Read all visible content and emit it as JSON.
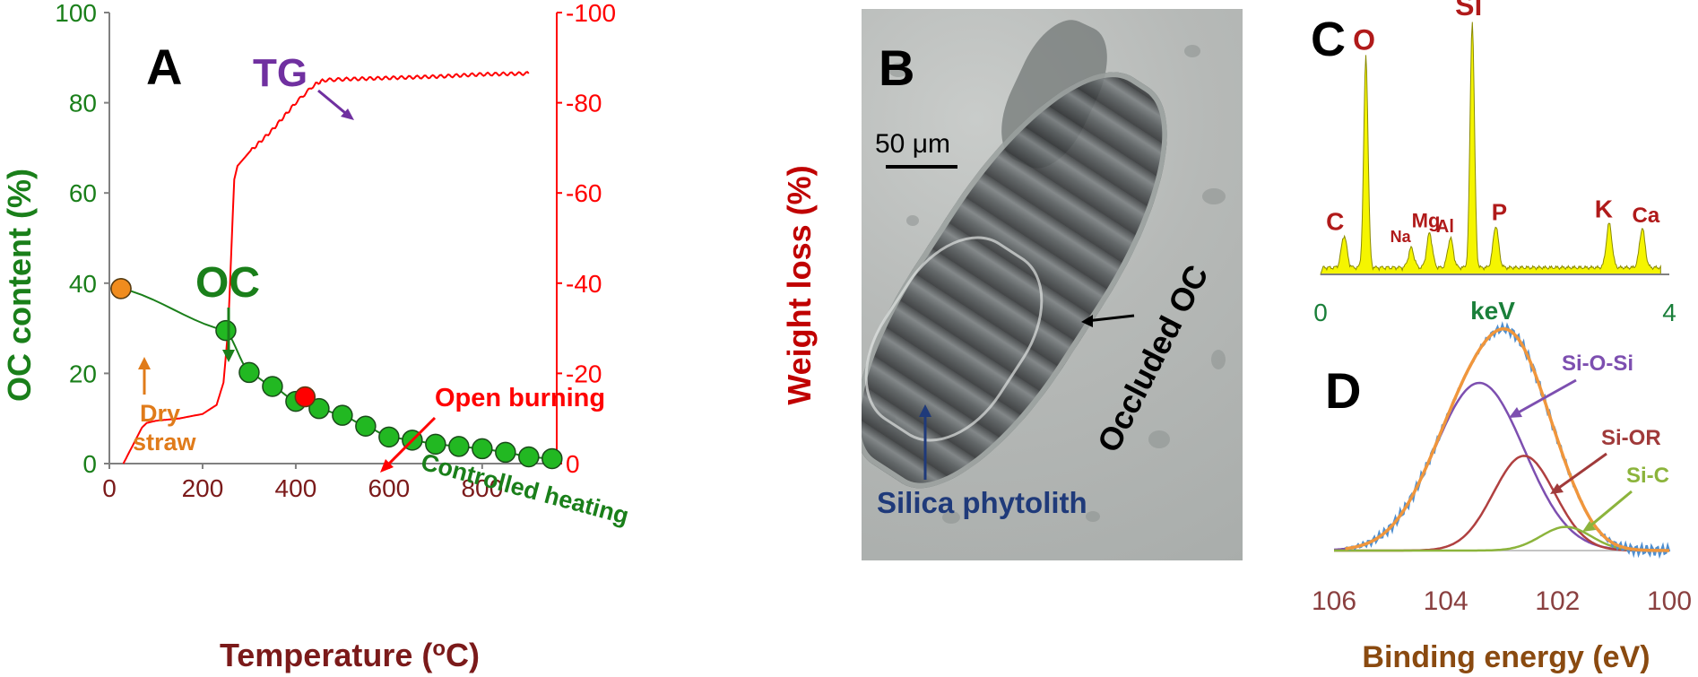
{
  "chart_data": [
    {
      "type": "line",
      "panel_label": "A",
      "xlabel": "Temperature (oC)",
      "ylabel_left": "OC content (%)",
      "ylabel_right": "Weight loss (%)",
      "xlim": [
        0,
        960
      ],
      "ylim_left": [
        0,
        100
      ],
      "ylim_right": [
        0,
        -100
      ],
      "x_ticks": [
        "0",
        "200",
        "400",
        "600",
        "800"
      ],
      "y_left_ticks": [
        "0",
        "20",
        "40",
        "60",
        "80",
        "100"
      ],
      "y_right_ticks": [
        "0",
        "-20",
        "-40",
        "-60",
        "-80",
        "-100"
      ],
      "series": [
        {
          "name": "OC",
          "axis": "left",
          "color": "#1a7f1a",
          "x": [
            25,
            250,
            300,
            350,
            400,
            450,
            500,
            550,
            600,
            650,
            700,
            750,
            800,
            850,
            900,
            950
          ],
          "y": [
            38.8,
            29.5,
            20.2,
            17.1,
            13.8,
            12.2,
            10.7,
            8.3,
            5.9,
            5.2,
            4.3,
            3.8,
            3.3,
            2.5,
            1.5,
            1.1
          ]
        },
        {
          "name": "TG",
          "axis": "right",
          "color": "#ff0000",
          "x": [
            30,
            50,
            70,
            80,
            100,
            150,
            200,
            230,
            245,
            255,
            262,
            268,
            275,
            300,
            350,
            400,
            440,
            460,
            500,
            600,
            700,
            800,
            900
          ],
          "y": [
            0,
            -4,
            -8,
            -9,
            -9.5,
            -10,
            -11,
            -13,
            -18,
            -30,
            -48,
            -63,
            -66,
            -69,
            -74,
            -80,
            -84,
            -85,
            -85.2,
            -85.5,
            -85.8,
            -86.3,
            -86.5
          ]
        }
      ],
      "highlight_points": [
        {
          "label": "Dry straw",
          "x": 25,
          "y": 38.8,
          "color": "#f08c1e"
        },
        {
          "label": "Open burning",
          "x": 420,
          "y": 14.8,
          "color": "#ff0000"
        }
      ],
      "annotations": {
        "tg": "TG",
        "oc": "OC",
        "dry_straw_line1": "Dry",
        "dry_straw_line2": "straw",
        "open_burning": "Open burning",
        "controlled_heating": "Controlled heating"
      }
    },
    {
      "type": "bar",
      "panel_label": "C",
      "xlabel": "keV",
      "x_ticks": [
        "0",
        "4"
      ],
      "xlim": [
        0,
        4
      ],
      "color": "#f5f500",
      "peaks": [
        {
          "element": "C",
          "kev": 0.27,
          "height": 0.13
        },
        {
          "element": "O",
          "kev": 0.52,
          "height": 0.86
        },
        {
          "element": "Na",
          "kev": 1.04,
          "height": 0.08
        },
        {
          "element": "Mg",
          "kev": 1.25,
          "height": 0.14
        },
        {
          "element": "Al",
          "kev": 1.49,
          "height": 0.12
        },
        {
          "element": "Si",
          "kev": 1.74,
          "height": 1.0
        },
        {
          "element": "P",
          "kev": 2.01,
          "height": 0.17
        },
        {
          "element": "K",
          "kev": 3.31,
          "height": 0.18
        },
        {
          "element": "Ca",
          "kev": 3.69,
          "height": 0.16
        }
      ]
    },
    {
      "type": "line",
      "panel_label": "D",
      "xlabel": "Binding energy (eV)",
      "xlim": [
        106,
        100
      ],
      "x_ticks": [
        "106",
        "104",
        "102",
        "100"
      ],
      "series": [
        {
          "name": "Si-O-Si",
          "color": "#7d4fb0",
          "center": 103.4,
          "amplitude": 0.85,
          "sigma": 0.8
        },
        {
          "name": "Si-OR",
          "color": "#b04040",
          "center": 102.6,
          "amplitude": 0.48,
          "sigma": 0.55
        },
        {
          "name": "Si-C",
          "color": "#8cb43c",
          "center": 101.85,
          "amplitude": 0.12,
          "sigma": 0.45
        }
      ],
      "envelope_color": "#f0963c",
      "measured_color": "#4f8fd0"
    }
  ],
  "panel_b": {
    "panel_label": "B",
    "scale_bar": "50 μm",
    "occluded_label": "Occluded OC",
    "phytolith_label": "Silica phytolith"
  }
}
